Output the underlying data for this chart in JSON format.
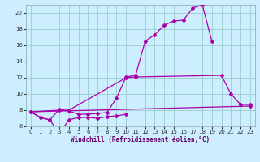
{
  "bg_color": "#cceeff",
  "grid_color": "#99cccc",
  "line_color": "#aa00aa",
  "marker": "D",
  "markersize": 2.0,
  "linewidth": 0.9,
  "xlim": [
    -0.5,
    23.5
  ],
  "ylim": [
    6,
    21
  ],
  "yticks": [
    6,
    8,
    10,
    12,
    14,
    16,
    18,
    20
  ],
  "xticks": [
    0,
    1,
    2,
    3,
    4,
    5,
    6,
    7,
    8,
    9,
    10,
    11,
    12,
    13,
    14,
    15,
    16,
    17,
    18,
    19,
    20,
    21,
    22,
    23
  ],
  "xlabel": "Windchill (Refroidissement éolien,°C)",
  "xlabel_fontsize": 5.5,
  "tick_fontsize": 5,
  "series1_x": [
    0,
    1,
    2,
    3,
    4,
    5,
    6,
    7,
    8,
    9,
    10,
    11,
    12,
    13,
    14,
    15,
    16,
    17,
    18,
    19
  ],
  "series1_y": [
    7.8,
    7.1,
    6.8,
    8.1,
    7.9,
    7.5,
    7.5,
    7.6,
    7.7,
    9.5,
    12.1,
    12.3,
    16.5,
    17.3,
    18.5,
    19.0,
    19.1,
    20.6,
    21.0,
    16.5
  ],
  "series2_x": [
    0,
    3,
    4,
    10,
    11,
    20,
    21,
    22,
    23
  ],
  "series2_y": [
    7.8,
    8.0,
    8.0,
    12.0,
    12.1,
    12.3,
    10.0,
    8.7,
    8.7
  ],
  "series3_x": [
    0,
    23
  ],
  "series3_y": [
    7.8,
    8.5
  ],
  "series4_x": [
    0,
    1,
    2,
    3,
    4,
    5,
    6,
    7,
    8,
    9,
    10
  ],
  "series4_y": [
    7.8,
    7.1,
    6.8,
    5.1,
    6.8,
    7.1,
    7.1,
    7.0,
    7.2,
    7.3,
    7.5
  ]
}
